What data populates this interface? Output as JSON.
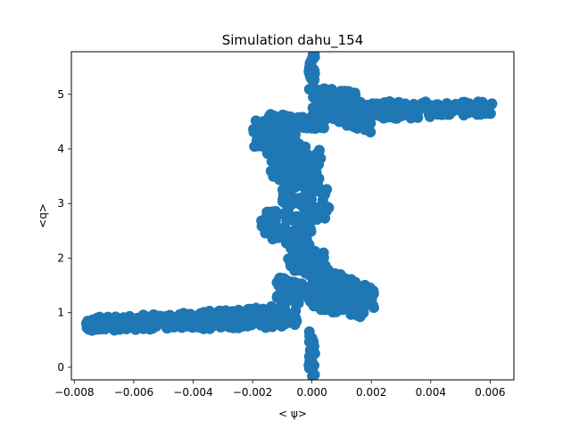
{
  "chart_data": {
    "type": "scatter",
    "title": "Simulation dahu_154",
    "xlabel": "< ψ>",
    "ylabel": "<q>",
    "xlim": [
      -0.0081,
      0.0068
    ],
    "ylim": [
      -0.23,
      5.78
    ],
    "x_ticks": [
      {
        "value": -0.008,
        "label": "−0.008"
      },
      {
        "value": -0.006,
        "label": "−0.006"
      },
      {
        "value": -0.004,
        "label": "−0.004"
      },
      {
        "value": -0.002,
        "label": "−0.002"
      },
      {
        "value": 0.0,
        "label": "0.000"
      },
      {
        "value": 0.002,
        "label": "0.002"
      },
      {
        "value": 0.004,
        "label": "0.004"
      },
      {
        "value": 0.006,
        "label": "0.006"
      }
    ],
    "y_ticks": [
      {
        "value": 0,
        "label": "0"
      },
      {
        "value": 1,
        "label": "1"
      },
      {
        "value": 2,
        "label": "2"
      },
      {
        "value": 3,
        "label": "3"
      },
      {
        "value": 4,
        "label": "4"
      },
      {
        "value": 5,
        "label": "5"
      }
    ],
    "grid": false,
    "series": [
      {
        "color": "#1f77b4",
        "marker": "circle",
        "regions": [
          {
            "x": [
              -0.0076,
              -0.006
            ],
            "y_center": [
              0.78,
              0.82
            ],
            "half_width": 0.13
          },
          {
            "x": [
              -0.006,
              -0.004
            ],
            "y_center": [
              0.82,
              0.86
            ],
            "half_width": 0.14
          },
          {
            "x": [
              -0.004,
              -0.002
            ],
            "y_center": [
              0.86,
              0.9
            ],
            "half_width": 0.17
          },
          {
            "x": [
              -0.002,
              -0.0005
            ],
            "y_center": [
              0.9,
              0.95
            ],
            "half_width": 0.2
          },
          {
            "x": [
              -0.0012,
              0.0018
            ],
            "y_center": [
              1.45,
              1.1
            ],
            "half_width": 0.22
          },
          {
            "x": [
              0.0,
              0.0021
            ],
            "y_center": [
              1.75,
              1.25
            ],
            "half_width": 0.18
          },
          {
            "x": [
              -0.0008,
              0.0005
            ],
            "y_center": [
              2.05,
              1.85
            ],
            "half_width": 0.25
          },
          {
            "x": [
              -0.0017,
              0.0
            ],
            "y_center": [
              2.7,
              2.4
            ],
            "half_width": 0.3
          },
          {
            "x": [
              -0.001,
              0.0006
            ],
            "y_center": [
              3.4,
              3.0
            ],
            "half_width": 0.4
          },
          {
            "x": [
              -0.0015,
              0.0003
            ],
            "y_center": [
              3.9,
              3.6
            ],
            "half_width": 0.4
          },
          {
            "x": [
              -0.002,
              -0.0005
            ],
            "y_center": [
              4.3,
              4.1
            ],
            "half_width": 0.28
          },
          {
            "x": [
              -0.0015,
              0.0004
            ],
            "y_center": [
              4.55,
              4.45
            ],
            "half_width": 0.1
          },
          {
            "x": [
              0.0,
              0.002
            ],
            "y_center": [
              4.85,
              4.55
            ],
            "half_width": 0.25
          },
          {
            "x": [
              0.0,
              0.0015
            ],
            "y_center": [
              4.95,
              4.85
            ],
            "half_width": 0.2
          },
          {
            "x": [
              0.0015,
              0.004
            ],
            "y_center": [
              4.7,
              4.72
            ],
            "half_width": 0.16
          },
          {
            "x": [
              0.004,
              0.0061
            ],
            "y_center": [
              4.72,
              4.75
            ],
            "half_width": 0.12
          },
          {
            "x": [
              -0.0001,
              0.0001
            ],
            "y_center": [
              0.35,
              0.05
            ],
            "half_width": 0.35
          },
          {
            "x": [
              -0.0001,
              0.0001
            ],
            "y_center": [
              5.25,
              5.5
            ],
            "half_width": 0.3
          }
        ]
      }
    ]
  }
}
